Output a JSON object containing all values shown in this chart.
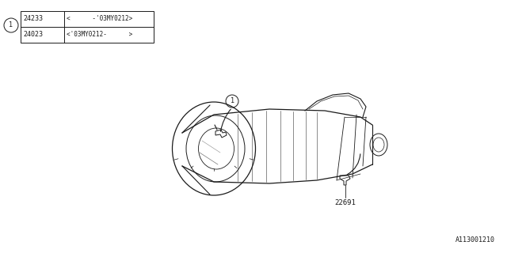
{
  "bg_color": "#ffffff",
  "line_color": "#1a1a1a",
  "table": {
    "circle_label": "1",
    "rows": [
      {
        "part_num": "24233",
        "spec": "<      -'03MY0212>"
      },
      {
        "part_num": "24023",
        "spec": "<'03MY0212-      >"
      }
    ]
  },
  "callout_1_label": "1",
  "part_label_22691": "22691",
  "diagram_id": "A113001210",
  "fig_w": 6.4,
  "fig_h": 3.2,
  "dpi": 100
}
